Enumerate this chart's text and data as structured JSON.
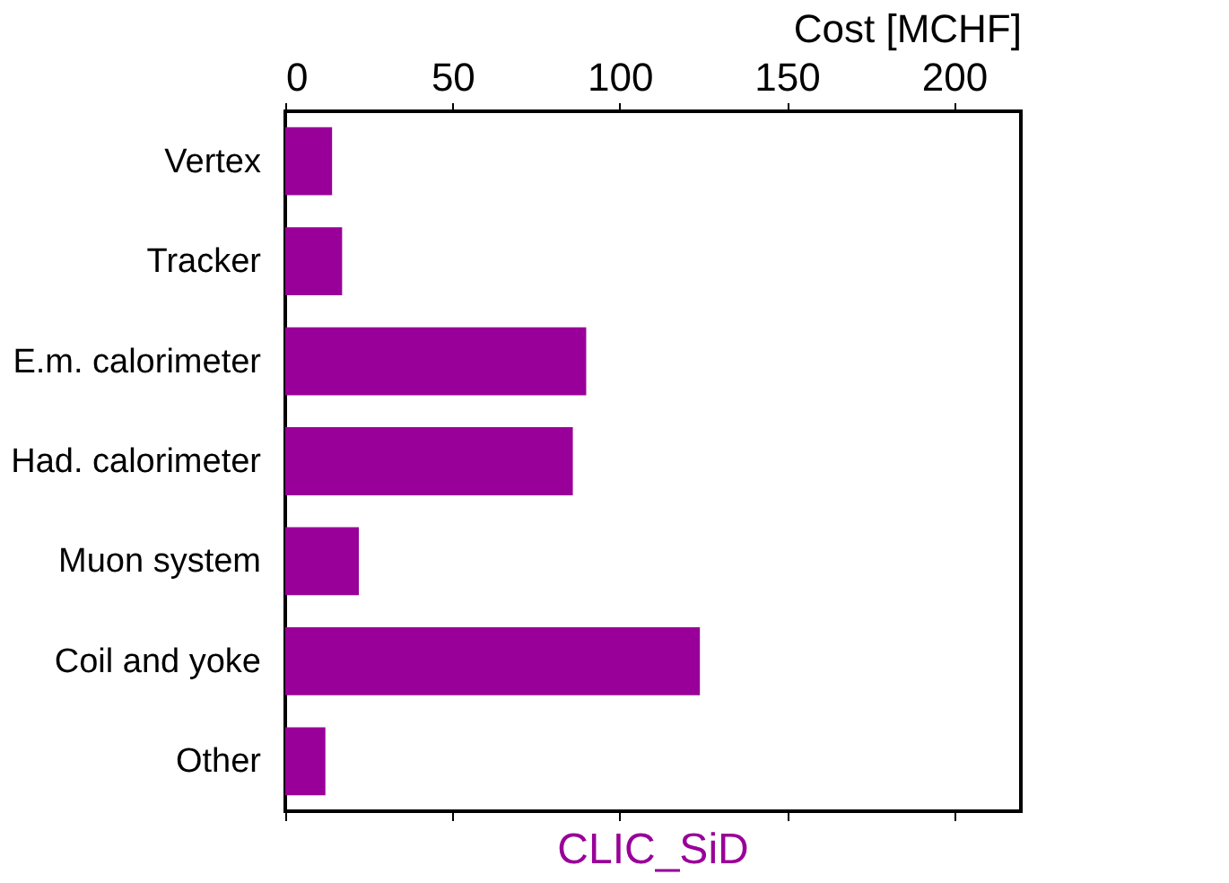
{
  "chart_data": {
    "type": "bar",
    "orientation": "horizontal",
    "xlabel": "Cost [MCHF]",
    "categories": [
      "Vertex",
      "Tracker",
      "E.m. calorimeter",
      "Had. calorimeter",
      "Muon system",
      "Coil and yoke",
      "Other"
    ],
    "values": [
      14,
      17,
      90,
      86,
      22,
      124,
      12
    ],
    "color": "#990099",
    "xlim": [
      0,
      220
    ],
    "xticks": [
      0,
      50,
      100,
      150,
      200
    ],
    "grid": false,
    "annotations": [
      "CLIC_SiD"
    ]
  }
}
